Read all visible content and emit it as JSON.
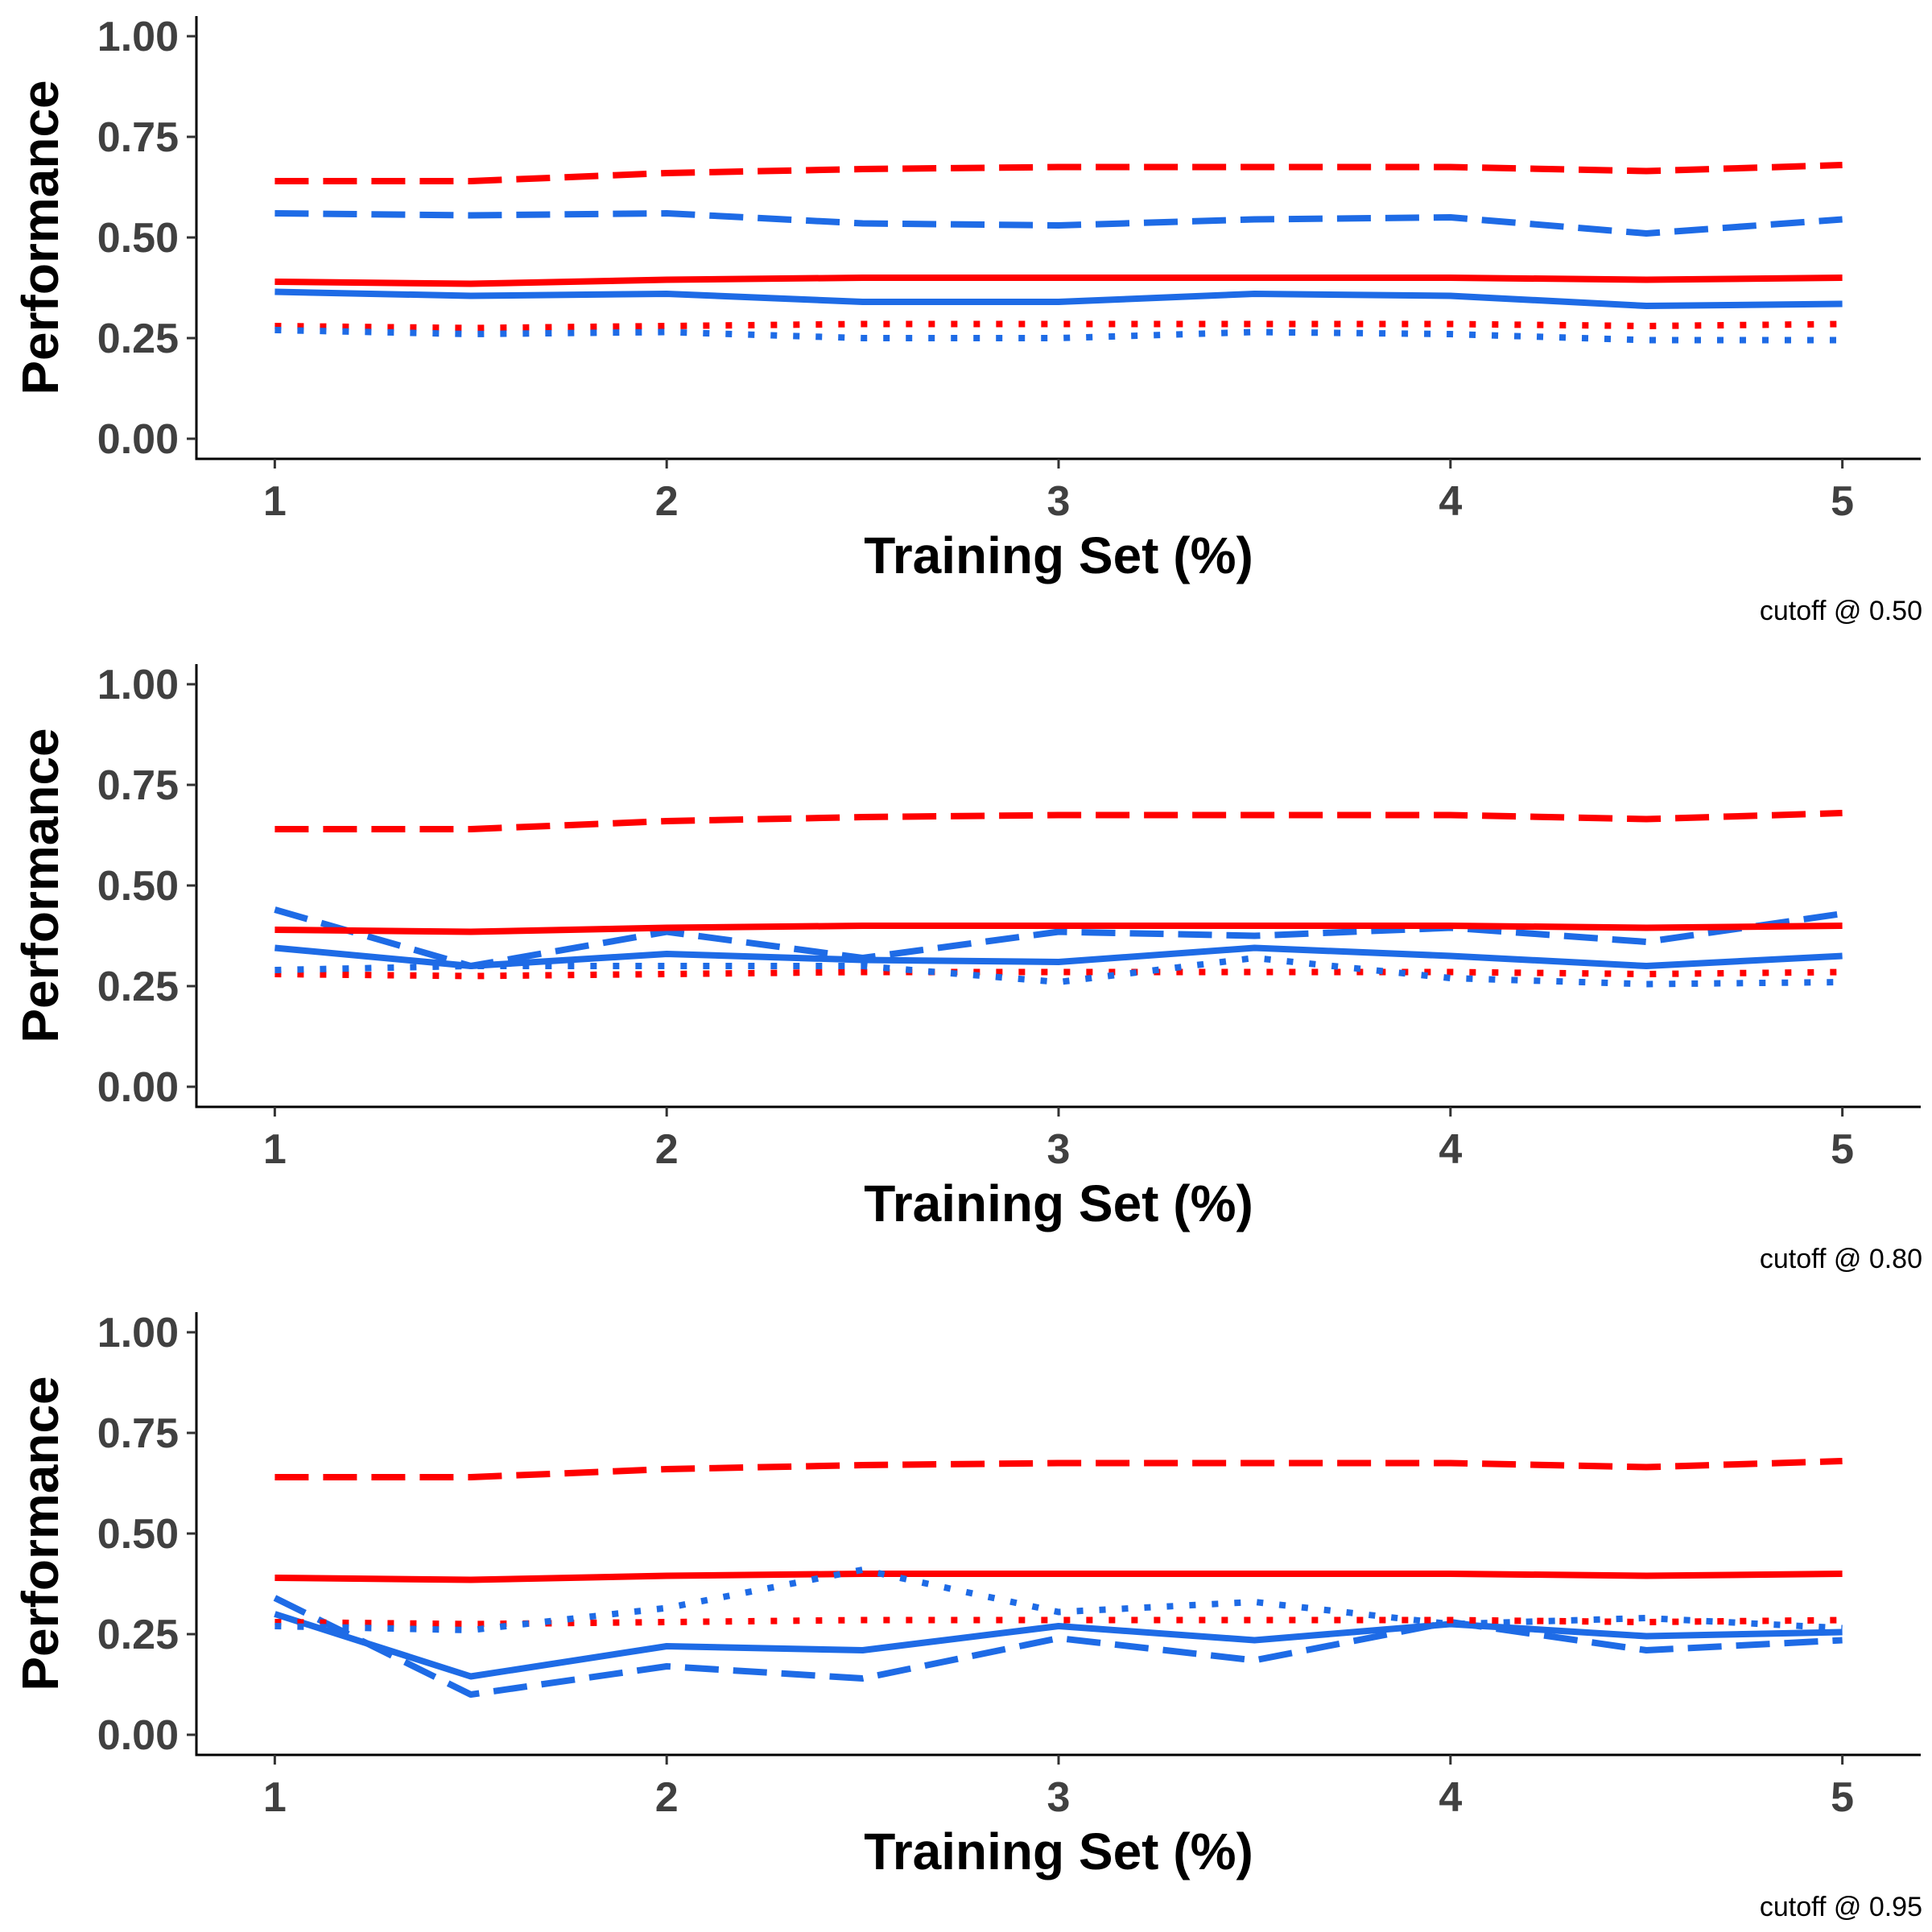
{
  "colors": {
    "red": "#FF0000",
    "blue": "#1E6BE6",
    "axis": "#000000",
    "tick_text": "#404040"
  },
  "chart_data": [
    {
      "type": "line",
      "caption": "cutoff @ 0.50",
      "xlabel": "Training Set (%)",
      "ylabel": "Performance",
      "xlim": [
        0.8,
        5.2
      ],
      "ylim": [
        -0.05,
        1.05
      ],
      "x_ticks": [
        "1",
        "2",
        "3",
        "4",
        "5"
      ],
      "y_ticks": [
        "0.00",
        "0.25",
        "0.50",
        "0.75",
        "1.00"
      ],
      "grid": false,
      "x": [
        1,
        1.5,
        2,
        2.5,
        3,
        3.5,
        4,
        4.5,
        5
      ],
      "series": [
        {
          "color": "#FF0000",
          "dash": "dashed",
          "values": [
            0.64,
            0.64,
            0.66,
            0.67,
            0.675,
            0.675,
            0.675,
            0.665,
            0.68
          ]
        },
        {
          "color": "#1E6BE6",
          "dash": "dashed",
          "values": [
            0.56,
            0.555,
            0.56,
            0.535,
            0.53,
            0.545,
            0.55,
            0.51,
            0.545
          ]
        },
        {
          "color": "#FF0000",
          "dash": "solid",
          "values": [
            0.39,
            0.385,
            0.395,
            0.4,
            0.4,
            0.4,
            0.4,
            0.395,
            0.4
          ]
        },
        {
          "color": "#1E6BE6",
          "dash": "solid",
          "values": [
            0.365,
            0.355,
            0.36,
            0.34,
            0.34,
            0.36,
            0.355,
            0.33,
            0.335
          ]
        },
        {
          "color": "#FF0000",
          "dash": "dotted",
          "values": [
            0.28,
            0.275,
            0.28,
            0.285,
            0.285,
            0.285,
            0.285,
            0.28,
            0.285
          ]
        },
        {
          "color": "#1E6BE6",
          "dash": "dotted",
          "values": [
            0.27,
            0.26,
            0.265,
            0.25,
            0.25,
            0.265,
            0.26,
            0.245,
            0.245
          ]
        }
      ]
    },
    {
      "type": "line",
      "caption": "cutoff @ 0.80",
      "xlabel": "Training Set (%)",
      "ylabel": "Performance",
      "xlim": [
        0.8,
        5.2
      ],
      "ylim": [
        -0.05,
        1.05
      ],
      "x_ticks": [
        "1",
        "2",
        "3",
        "4",
        "5"
      ],
      "y_ticks": [
        "0.00",
        "0.25",
        "0.50",
        "0.75",
        "1.00"
      ],
      "grid": false,
      "x": [
        1,
        1.5,
        2,
        2.5,
        3,
        3.5,
        4,
        4.5,
        5
      ],
      "series": [
        {
          "color": "#FF0000",
          "dash": "dashed",
          "values": [
            0.64,
            0.64,
            0.66,
            0.67,
            0.675,
            0.675,
            0.675,
            0.665,
            0.68
          ]
        },
        {
          "color": "#1E6BE6",
          "dash": "dashed",
          "values": [
            0.44,
            0.3,
            0.385,
            0.32,
            0.385,
            0.375,
            0.395,
            0.36,
            0.43
          ]
        },
        {
          "color": "#FF0000",
          "dash": "solid",
          "values": [
            0.39,
            0.385,
            0.395,
            0.4,
            0.4,
            0.4,
            0.4,
            0.395,
            0.4
          ]
        },
        {
          "color": "#1E6BE6",
          "dash": "solid",
          "values": [
            0.345,
            0.3,
            0.33,
            0.315,
            0.31,
            0.345,
            0.325,
            0.3,
            0.325
          ]
        },
        {
          "color": "#FF0000",
          "dash": "dotted",
          "values": [
            0.28,
            0.275,
            0.28,
            0.285,
            0.285,
            0.285,
            0.285,
            0.28,
            0.285
          ]
        },
        {
          "color": "#1E6BE6",
          "dash": "dotted",
          "values": [
            0.29,
            0.3,
            0.3,
            0.3,
            0.26,
            0.32,
            0.27,
            0.255,
            0.26
          ]
        }
      ]
    },
    {
      "type": "line",
      "caption": "cutoff @ 0.95",
      "xlabel": "Training Set (%)",
      "ylabel": "Performance",
      "xlim": [
        0.8,
        5.2
      ],
      "ylim": [
        -0.05,
        1.05
      ],
      "x_ticks": [
        "1",
        "2",
        "3",
        "4",
        "5"
      ],
      "y_ticks": [
        "0.00",
        "0.25",
        "0.50",
        "0.75",
        "1.00"
      ],
      "grid": false,
      "x": [
        1,
        1.5,
        2,
        2.5,
        3,
        3.5,
        4,
        4.5,
        5
      ],
      "series": [
        {
          "color": "#FF0000",
          "dash": "dashed",
          "values": [
            0.64,
            0.64,
            0.66,
            0.67,
            0.675,
            0.675,
            0.675,
            0.665,
            0.68
          ]
        },
        {
          "color": "#1E6BE6",
          "dash": "dashed",
          "values": [
            0.34,
            0.1,
            0.17,
            0.14,
            0.24,
            0.185,
            0.28,
            0.21,
            0.235
          ]
        },
        {
          "color": "#FF0000",
          "dash": "solid",
          "values": [
            0.39,
            0.385,
            0.395,
            0.4,
            0.4,
            0.4,
            0.4,
            0.395,
            0.4
          ]
        },
        {
          "color": "#1E6BE6",
          "dash": "solid",
          "values": [
            0.3,
            0.145,
            0.22,
            0.21,
            0.27,
            0.235,
            0.275,
            0.245,
            0.255
          ]
        },
        {
          "color": "#FF0000",
          "dash": "dotted",
          "values": [
            0.28,
            0.275,
            0.28,
            0.285,
            0.285,
            0.285,
            0.285,
            0.28,
            0.285
          ]
        },
        {
          "color": "#1E6BE6",
          "dash": "dotted",
          "values": [
            0.27,
            0.26,
            0.315,
            0.41,
            0.305,
            0.33,
            0.275,
            0.29,
            0.265
          ]
        }
      ]
    }
  ]
}
